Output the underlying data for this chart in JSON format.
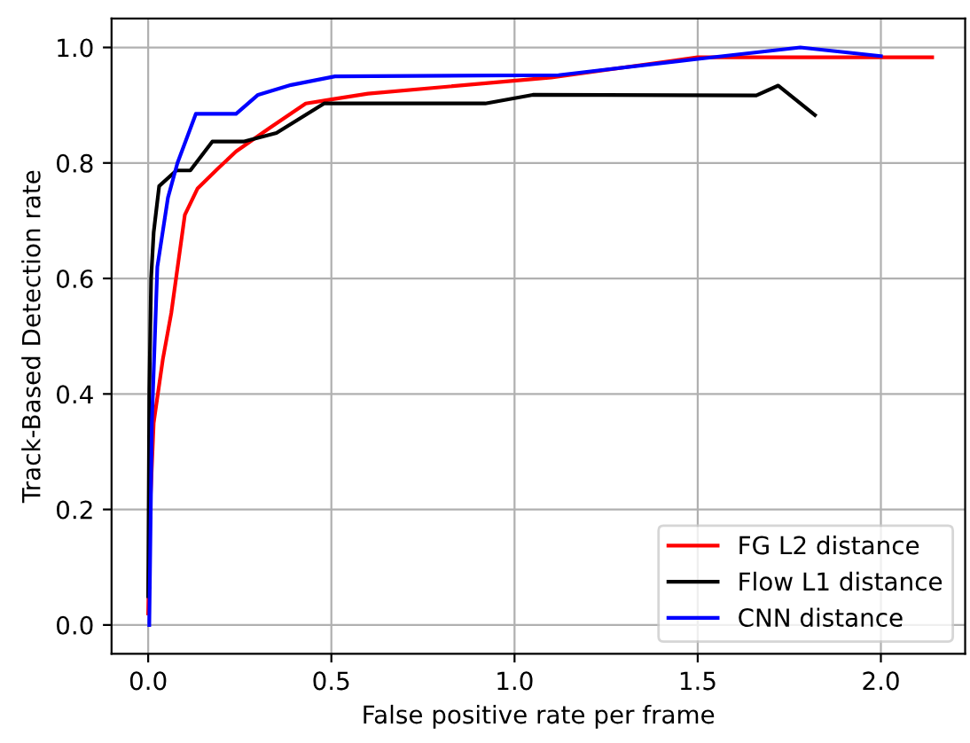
{
  "chart_data": {
    "type": "line",
    "xlabel": "False positive rate per frame",
    "ylabel": "Track-Based Detection rate",
    "xlim": [
      -0.1,
      2.23
    ],
    "ylim": [
      -0.05,
      1.05
    ],
    "xticks": [
      {
        "value": 0,
        "label": "0.0"
      },
      0.5,
      {
        "value": 1,
        "label": "1.0"
      },
      1.5,
      {
        "value": 2,
        "label": "2.0"
      }
    ],
    "yticks": [
      {
        "value": 0,
        "label": "0.0"
      },
      0.2,
      0.4,
      0.6,
      0.8,
      {
        "value": 1,
        "label": "1.0"
      }
    ],
    "grid": true,
    "legend": "bottom right",
    "series": [
      {
        "name": "FG L2 distance",
        "color": "#ff0000",
        "x": [
          0.0,
          0.005,
          0.015,
          0.04,
          0.063,
          0.1,
          0.135,
          0.19,
          0.24,
          0.33,
          0.43,
          0.5,
          0.6,
          1.1,
          1.5,
          2.14
        ],
        "values": [
          0.02,
          0.2,
          0.35,
          0.46,
          0.54,
          0.71,
          0.756,
          0.79,
          0.82,
          0.86,
          0.903,
          0.91,
          0.92,
          0.948,
          0.983,
          0.983
        ]
      },
      {
        "name": "Flow L1 distance",
        "color": "#000000",
        "x": [
          0.0,
          0.003,
          0.008,
          0.015,
          0.03,
          0.077,
          0.115,
          0.175,
          0.26,
          0.35,
          0.48,
          0.92,
          1.05,
          1.66,
          1.72,
          1.82
        ],
        "values": [
          0.05,
          0.4,
          0.6,
          0.68,
          0.76,
          0.787,
          0.787,
          0.837,
          0.837,
          0.852,
          0.903,
          0.903,
          0.918,
          0.917,
          0.934,
          0.883
        ]
      },
      {
        "name": "CNN distance",
        "color": "#0000ff",
        "x": [
          0.003,
          0.005,
          0.01,
          0.025,
          0.054,
          0.08,
          0.13,
          0.24,
          0.3,
          0.39,
          0.51,
          1.12,
          1.5,
          1.78,
          2.0
        ],
        "values": [
          0.0,
          0.1,
          0.35,
          0.62,
          0.74,
          0.8,
          0.885,
          0.885,
          0.918,
          0.935,
          0.95,
          0.952,
          0.98,
          1.0,
          0.985
        ]
      }
    ]
  }
}
